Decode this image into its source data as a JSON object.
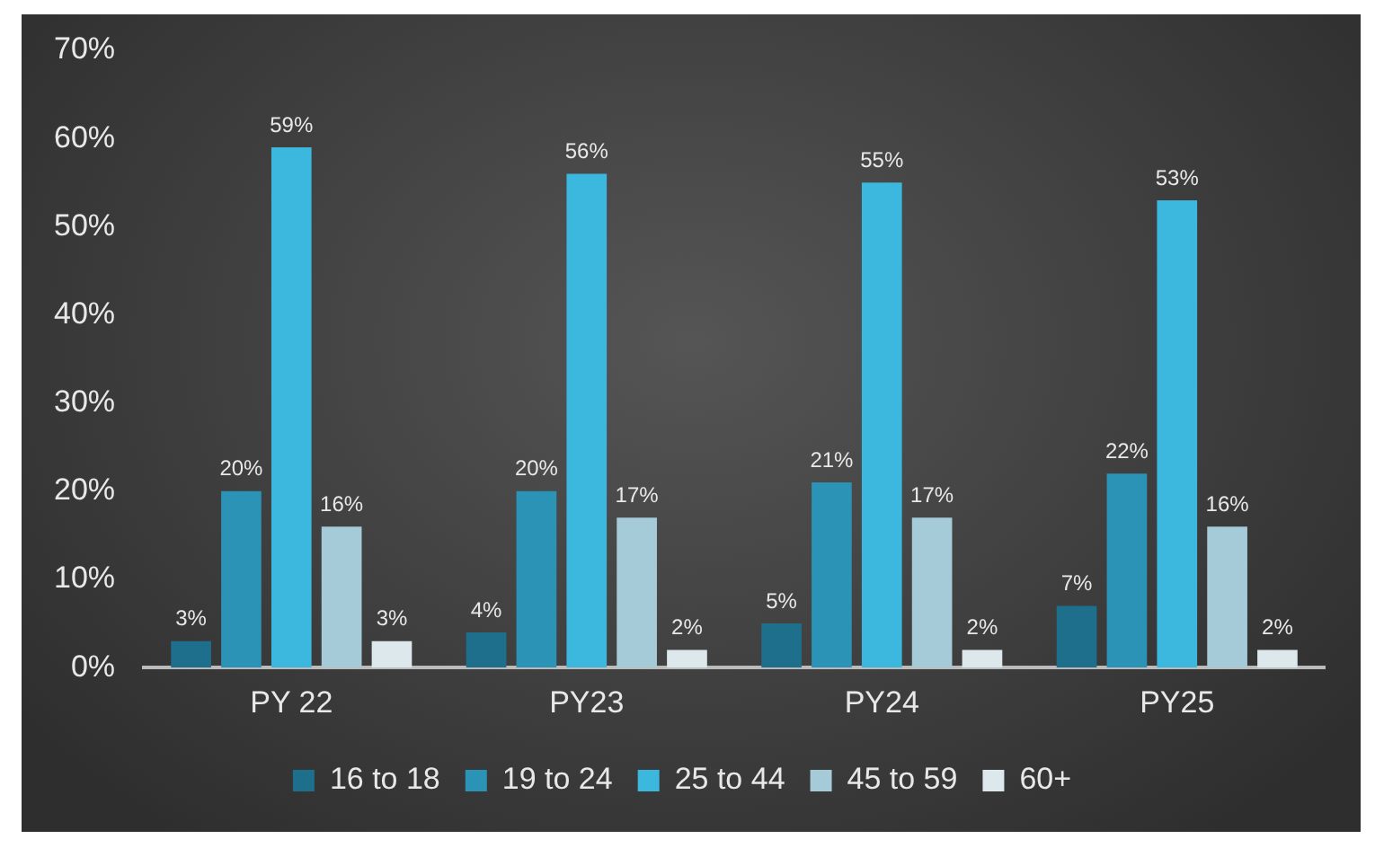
{
  "chart_data": {
    "type": "bar",
    "categories": [
      "PY 22",
      "PY23",
      "PY24",
      "PY25"
    ],
    "series": [
      {
        "name": "16 to 18",
        "color": "#1d6f8c",
        "values": [
          3,
          4,
          5,
          7
        ],
        "value_labels": [
          "3%",
          "4%",
          "5%",
          "7%"
        ]
      },
      {
        "name": "19 to 24",
        "color": "#2b93b5",
        "values": [
          20,
          20,
          21,
          22
        ],
        "value_labels": [
          "20%",
          "20%",
          "21%",
          "22%"
        ]
      },
      {
        "name": "25 to 44",
        "color": "#3cb8de",
        "values": [
          59,
          56,
          55,
          53
        ],
        "value_labels": [
          "59%",
          "56%",
          "55%",
          "53%"
        ]
      },
      {
        "name": "45 to 59",
        "color": "#a6cbd8",
        "values": [
          16,
          17,
          17,
          16
        ],
        "value_labels": [
          "16%",
          "17%",
          "17%",
          "16%"
        ]
      },
      {
        "name": "60+",
        "color": "#dce8ec",
        "values": [
          3,
          2,
          2,
          2
        ],
        "value_labels": [
          "3%",
          "2%",
          "2%",
          "2%"
        ]
      }
    ],
    "ylim": [
      0,
      70
    ],
    "yticks": [
      {
        "value": 0,
        "label": "0%"
      },
      {
        "value": 10,
        "label": "10%"
      },
      {
        "value": 20,
        "label": "20%"
      },
      {
        "value": 30,
        "label": "30%"
      },
      {
        "value": 40,
        "label": "40%"
      },
      {
        "value": 50,
        "label": "50%"
      },
      {
        "value": 60,
        "label": "60%"
      },
      {
        "value": 70,
        "label": "70%"
      }
    ],
    "grid": false,
    "legend": "bottom"
  }
}
